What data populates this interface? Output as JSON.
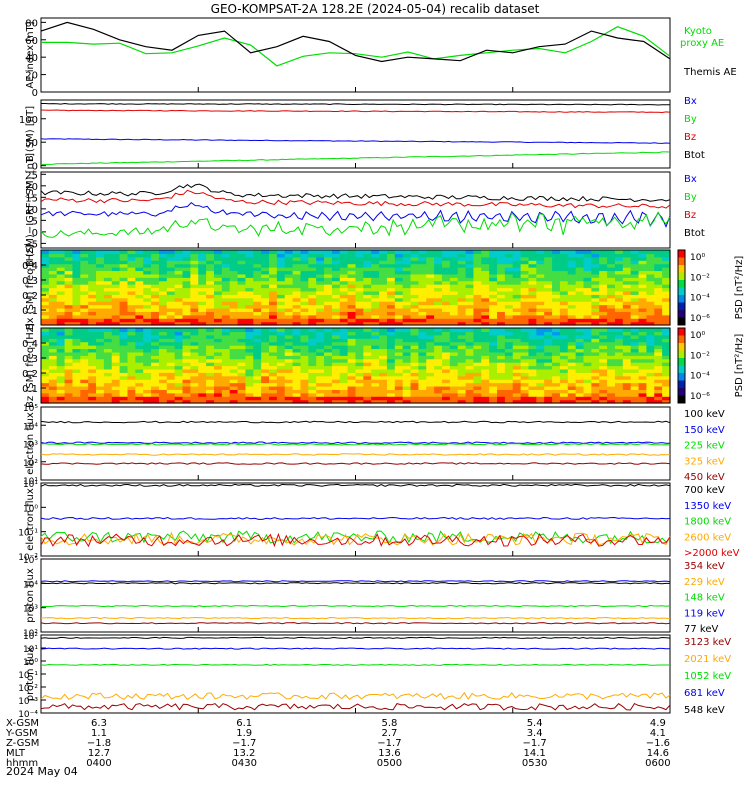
{
  "title": "GEO-KOMPSAT-2A 128.2E (2024-05-04) recalib dataset",
  "date_label": "2024 May 04",
  "orbit": {
    "row_labels": [
      "X-GSM",
      "Y-GSM",
      "Z-GSM",
      "MLT",
      "hhmm"
    ],
    "columns": [
      [
        "6.3",
        "1.1",
        "−1.8",
        "12.7",
        "0400"
      ],
      [
        "6.1",
        "1.9",
        "−1.7",
        "13.2",
        "0430"
      ],
      [
        "5.8",
        "2.7",
        "−1.7",
        "13.6",
        "0500"
      ],
      [
        "5.4",
        "3.4",
        "−1.7",
        "14.1",
        "0530"
      ],
      [
        "4.9",
        "4.1",
        "−1.6",
        "14.6",
        "0600"
      ]
    ]
  },
  "colors": {
    "black": "#000000",
    "red": "#e00000",
    "green": "#00dd00",
    "blue": "#0000ee",
    "orange": "#ffaa00",
    "darkred": "#990000",
    "cyan": "#00cccc"
  },
  "chart_data": [
    {
      "type": "line",
      "ylabel": "AE index [nT]",
      "ylim": [
        0,
        85
      ],
      "yticks": [
        "0",
        "20",
        "40",
        "60",
        "80"
      ],
      "x": [
        0,
        5,
        10,
        15,
        20,
        25,
        30,
        35,
        40,
        45,
        50,
        55,
        60,
        65,
        70,
        75,
        80,
        85,
        90,
        95,
        100,
        105,
        110,
        115,
        120
      ],
      "series": [
        {
          "name": "Kyoto proxy AE",
          "color": "#00dd00",
          "values": [
            57,
            57,
            55,
            56,
            44,
            45,
            53,
            62,
            54,
            30,
            41,
            45,
            44,
            40,
            46,
            38,
            42,
            45,
            48,
            50,
            45,
            58,
            75,
            64,
            41
          ]
        },
        {
          "name": "Themis AE",
          "color": "#000000",
          "values": [
            70,
            80,
            72,
            60,
            52,
            48,
            65,
            70,
            45,
            52,
            64,
            58,
            42,
            35,
            40,
            38,
            36,
            48,
            45,
            52,
            55,
            70,
            62,
            58,
            38
          ]
        }
      ],
      "legend": [
        "Kyoto",
        "proxy AE",
        "Themis AE"
      ]
    },
    {
      "type": "line",
      "ylabel": "B (SM) [nT]",
      "ylim": [
        -5,
        140
      ],
      "yticks": [
        "0",
        "50",
        "100"
      ],
      "series": [
        {
          "name": "Bx",
          "color": "#0000ee",
          "start": 57,
          "end": 48
        },
        {
          "name": "By",
          "color": "#00dd00",
          "start": 3,
          "end": 29
        },
        {
          "name": "Bz",
          "color": "#e00000",
          "start": 118,
          "end": 114
        },
        {
          "name": "Btot",
          "color": "#000000",
          "start": 132,
          "end": 130
        }
      ]
    },
    {
      "type": "line",
      "ylabel": "B (SM)−IGRF (SM) [nT]",
      "ylim": [
        -7,
        26
      ],
      "yticks": [
        "−5",
        "0",
        "5",
        "10",
        "15",
        "20",
        "25"
      ],
      "series": [
        {
          "name": "Bx",
          "color": "#0000ee",
          "start": 8,
          "end": 6
        },
        {
          "name": "By",
          "color": "#00dd00",
          "start": -1,
          "end": 5
        },
        {
          "name": "Bz",
          "color": "#e00000",
          "start": 14,
          "end": 11
        },
        {
          "name": "Btot",
          "color": "#000000",
          "start": 17,
          "end": 14
        }
      ]
    },
    {
      "type": "heatmap",
      "ylabel": "Bx (SM) freq [Hz]",
      "yticks": [
        "0.1",
        "0.2",
        "0.3",
        "0.4"
      ],
      "colorbar_label": "PSD [nT²/Hz]",
      "colorbar_ticks": [
        "10⁰",
        "10⁻²",
        "10⁻⁴",
        "10⁻⁶"
      ]
    },
    {
      "type": "heatmap",
      "ylabel": "Bz (SM) freq [Hz]",
      "yticks": [
        "0.1",
        "0.2",
        "0.3",
        "0.4"
      ],
      "colorbar_label": "PSD [nT²/Hz]",
      "colorbar_ticks": [
        "10⁰",
        "10⁻²",
        "10⁻⁴",
        "10⁻⁶"
      ]
    },
    {
      "type": "line",
      "ylabel": "electron flux",
      "yscale": "log",
      "ylim_exp": [
        1,
        5
      ],
      "yticks": [
        "10⁵",
        "10⁴",
        "10³",
        "10²",
        "10¹"
      ],
      "series": [
        {
          "name": "100 keV",
          "color": "#000000",
          "level": 15000
        },
        {
          "name": "150 keV",
          "color": "#0000ee",
          "level": 1100
        },
        {
          "name": "225 keV",
          "color": "#00dd00",
          "level": 900
        },
        {
          "name": "325 keV",
          "color": "#ffaa00",
          "level": 250
        },
        {
          "name": "450 keV",
          "color": "#990000",
          "level": 80
        }
      ]
    },
    {
      "type": "line",
      "ylabel": "electron flux",
      "yscale": "log",
      "ylim_exp": [
        -2,
        1
      ],
      "yticks": [
        "10¹",
        "10⁰",
        "10⁻¹",
        "10⁻²"
      ],
      "series": [
        {
          "name": "700 keV",
          "color": "#000000",
          "level": 8
        },
        {
          "name": "1350 keV",
          "color": "#0000ee",
          "level": 0.35
        },
        {
          "name": "1800 keV",
          "color": "#00dd00",
          "level": 0.06
        },
        {
          "name": "2600 keV",
          "color": "#ffaa00",
          "level": 0.05
        },
        {
          "name": ">2000 keV",
          "color": "#e00000",
          "level": 0.045
        }
      ]
    },
    {
      "type": "line",
      "ylabel": "proton flux",
      "yscale": "log",
      "ylim_exp": [
        1,
        6
      ],
      "yticks": [
        "10⁵",
        "10⁴",
        "10³",
        "10²"
      ],
      "series": [
        {
          "name": "354 keV",
          "color": "#990000",
          "level": 40
        },
        {
          "name": "229 keV",
          "color": "#ffaa00",
          "level": 90
        },
        {
          "name": "148 keV",
          "color": "#00dd00",
          "level": 600
        },
        {
          "name": "119 keV",
          "color": "#0000ee",
          "level": 30000
        },
        {
          "name": "77 keV",
          "color": "#000000",
          "level": 22000
        }
      ]
    },
    {
      "type": "line",
      "ylabel": "proton flux",
      "yscale": "log",
      "ylim_exp": [
        -4,
        2
      ],
      "yticks": [
        "10²",
        "10¹",
        "10⁰",
        "10⁻¹",
        "10⁻²",
        "10⁻³",
        "10⁻⁴"
      ],
      "series": [
        {
          "name": "3123 keV",
          "color": "#990000",
          "level": 0.0003
        },
        {
          "name": "2021 keV",
          "color": "#ffaa00",
          "level": 0.002
        },
        {
          "name": "1052 keV",
          "color": "#00dd00",
          "level": 0.5
        },
        {
          "name": "681 keV",
          "color": "#0000ee",
          "level": 9
        },
        {
          "name": "548 keV",
          "color": "#000000",
          "level": 60
        }
      ]
    }
  ]
}
